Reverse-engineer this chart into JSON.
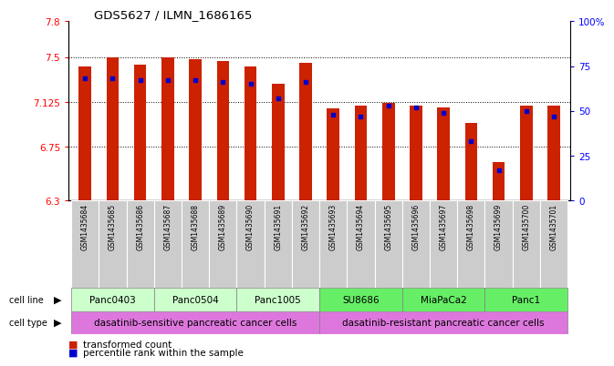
{
  "title": "GDS5627 / ILMN_1686165",
  "samples": [
    "GSM1435684",
    "GSM1435685",
    "GSM1435686",
    "GSM1435687",
    "GSM1435688",
    "GSM1435689",
    "GSM1435690",
    "GSM1435691",
    "GSM1435692",
    "GSM1435693",
    "GSM1435694",
    "GSM1435695",
    "GSM1435696",
    "GSM1435697",
    "GSM1435698",
    "GSM1435699",
    "GSM1435700",
    "GSM1435701"
  ],
  "transformed_count": [
    7.42,
    7.5,
    7.44,
    7.5,
    7.48,
    7.47,
    7.42,
    7.28,
    7.45,
    7.07,
    7.09,
    7.12,
    7.09,
    7.08,
    6.95,
    6.62,
    7.09,
    7.09
  ],
  "percentile_rank": [
    68,
    68,
    67,
    67,
    67,
    66,
    65,
    57,
    66,
    48,
    47,
    53,
    52,
    49,
    33,
    17,
    50,
    47
  ],
  "y_min": 6.3,
  "y_max": 7.8,
  "y_ticks": [
    6.3,
    6.75,
    7.125,
    7.5,
    7.8
  ],
  "y_tick_labels": [
    "6.3",
    "6.75",
    "7.125",
    "7.5",
    "7.8"
  ],
  "right_y_ticks": [
    0,
    25,
    50,
    75,
    100
  ],
  "right_y_labels": [
    "0",
    "25",
    "50",
    "75",
    "100%"
  ],
  "bar_color": "#cc2200",
  "dot_color": "#0000cc",
  "cell_lines": [
    {
      "label": "Panc0403",
      "start": 0,
      "end": 2,
      "color": "#ccffcc"
    },
    {
      "label": "Panc0504",
      "start": 3,
      "end": 5,
      "color": "#ccffcc"
    },
    {
      "label": "Panc1005",
      "start": 6,
      "end": 8,
      "color": "#ccffcc"
    },
    {
      "label": "SU8686",
      "start": 9,
      "end": 11,
      "color": "#66ee66"
    },
    {
      "label": "MiaPaCa2",
      "start": 12,
      "end": 14,
      "color": "#66ee66"
    },
    {
      "label": "Panc1",
      "start": 15,
      "end": 17,
      "color": "#66ee66"
    }
  ],
  "cell_types": [
    {
      "label": "dasatinib-sensitive pancreatic cancer cells",
      "start": 0,
      "end": 8
    },
    {
      "label": "dasatinib-resistant pancreatic cancer cells",
      "start": 9,
      "end": 17
    }
  ],
  "cell_type_color": "#dd77dd",
  "sample_box_color": "#cccccc",
  "legend_items": [
    {
      "color": "#cc2200",
      "label": "transformed count"
    },
    {
      "color": "#0000cc",
      "label": "percentile rank within the sample"
    }
  ]
}
